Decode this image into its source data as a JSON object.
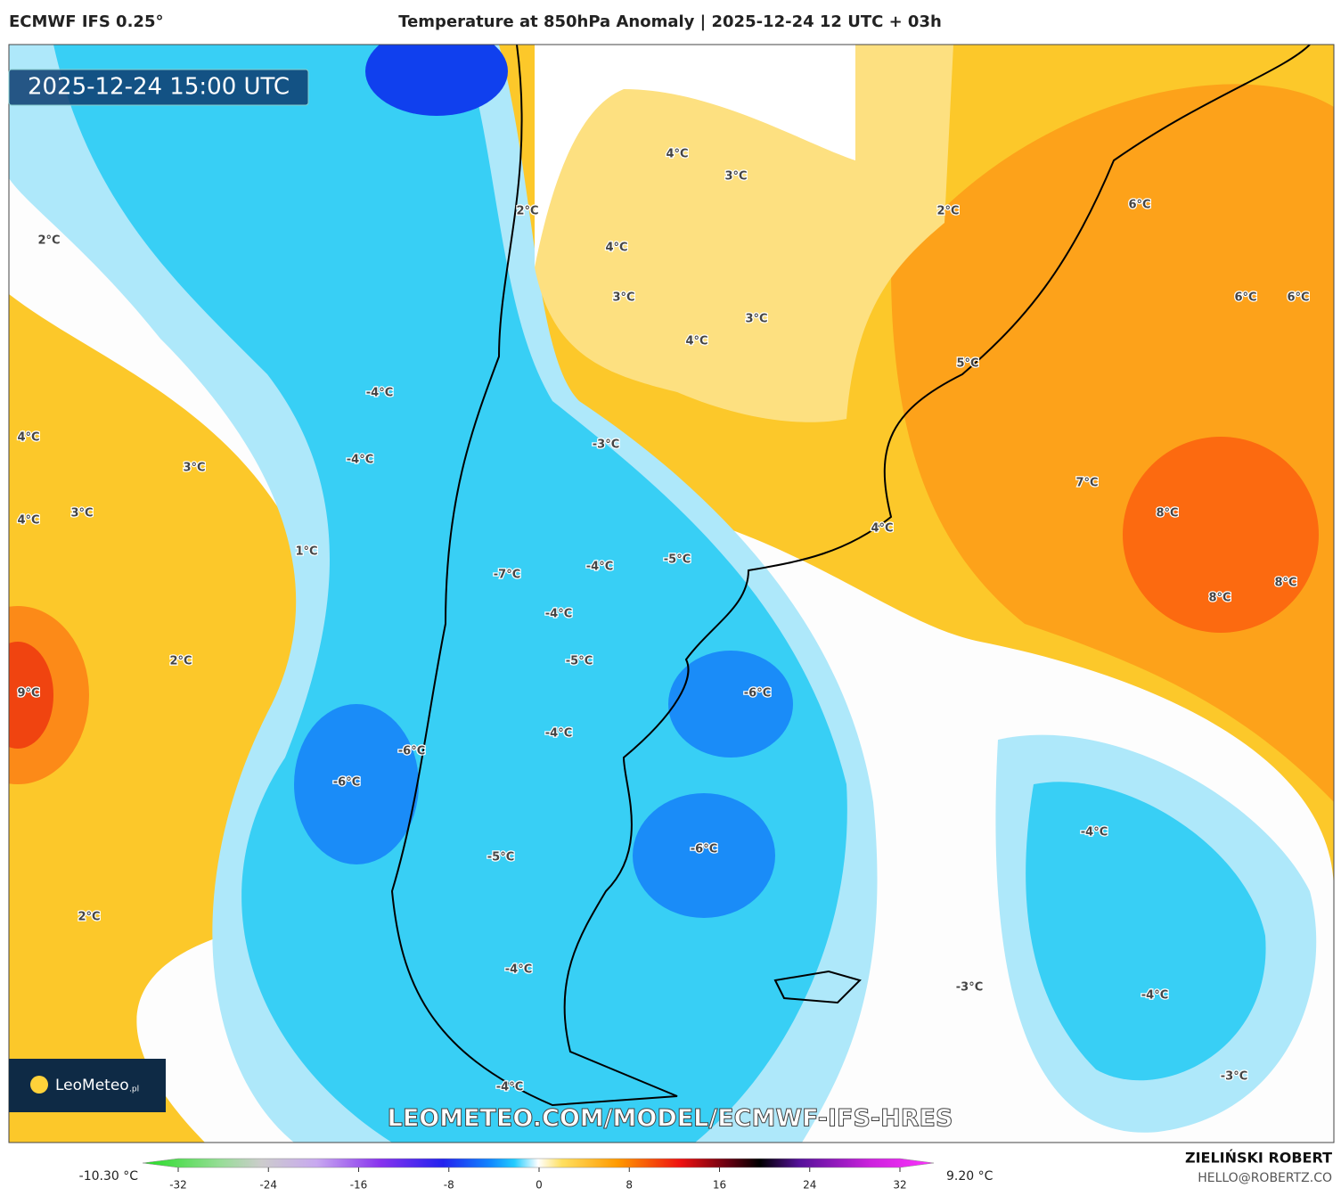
{
  "header": {
    "model": "ECMWF IFS 0.25°",
    "title": "Temperature at 850hPa Anomaly | 2025-12-24 12 UTC + 03h"
  },
  "map": {
    "timestamp": "2025-12-24 15:00 UTC",
    "logo": "LeoMeteo",
    "logo_suffix": ".pl",
    "watermark": "LEOMETEO.COM/MODEL/ECMWF-IFS-HRES",
    "contour_labels": [
      "4°C",
      "3°C",
      "2°C",
      "6°C",
      "2°C",
      "2°C",
      "4°C",
      "3°C",
      "3°C",
      "4°C",
      "6°C",
      "6°C",
      "5°C",
      "-4°C",
      "-3°C",
      "4°C",
      "-4°C",
      "3°C",
      "7°C",
      "4°C",
      "3°C",
      "8°C",
      "4°C",
      "1°C",
      "-4°C",
      "-5°C",
      "-7°C",
      "8°C",
      "8°C",
      "-4°C",
      "2°C",
      "-5°C",
      "9°C",
      "-6°C",
      "-4°C",
      "-6°C",
      "-6°C",
      "-4°C",
      "-6°C",
      "-5°C",
      "2°C",
      "-4°C",
      "-3°C",
      "-4°C",
      "-3°C",
      "-4°C"
    ]
  },
  "colorbar": {
    "min_label": "-10.30 °C",
    "max_label": "9.20 °C",
    "ticks": [
      -32,
      -24,
      -16,
      -8,
      0,
      8,
      16,
      24,
      32
    ]
  },
  "footer": {
    "author": "ZIELIŃSKI ROBERT",
    "contact": "HELLO@ROBERTZ.CO"
  }
}
